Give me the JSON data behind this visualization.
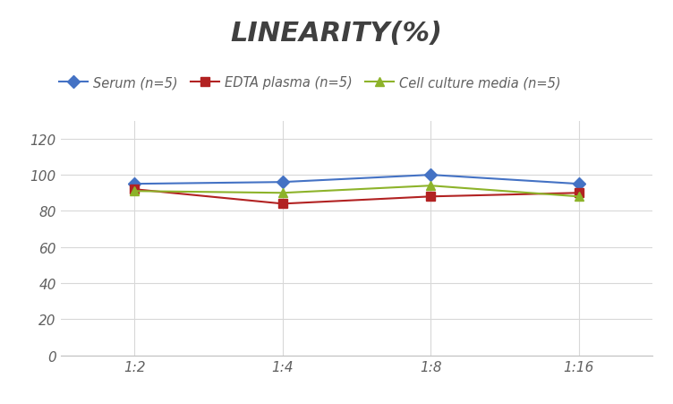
{
  "title": "LINEARITY(%)",
  "title_fontsize": 22,
  "title_fontstyle": "italic",
  "title_fontweight": "bold",
  "title_color": "#404040",
  "x_labels": [
    "1:2",
    "1:4",
    "1:8",
    "1:16"
  ],
  "x_values": [
    0,
    1,
    2,
    3
  ],
  "series": [
    {
      "label": "Serum (n=5)",
      "color": "#4472C4",
      "marker": "D",
      "values": [
        95,
        96,
        100,
        95
      ]
    },
    {
      "label": "EDTA plasma (n=5)",
      "color": "#B22222",
      "marker": "s",
      "values": [
        92,
        84,
        88,
        90
      ]
    },
    {
      "label": "Cell culture media (n=5)",
      "color": "#8DB32A",
      "marker": "^",
      "values": [
        91,
        90,
        94,
        88
      ]
    }
  ],
  "ylim": [
    0,
    130
  ],
  "yticks": [
    0,
    20,
    40,
    60,
    80,
    100,
    120
  ],
  "grid_color": "#D8D8D8",
  "background_color": "#FFFFFF",
  "legend_fontstyle": "italic",
  "legend_fontsize": 10.5,
  "axis_label_color": "#606060",
  "tick_label_fontstyle": "italic",
  "tick_label_fontsize": 11,
  "linewidth": 1.5,
  "markersize": 7
}
